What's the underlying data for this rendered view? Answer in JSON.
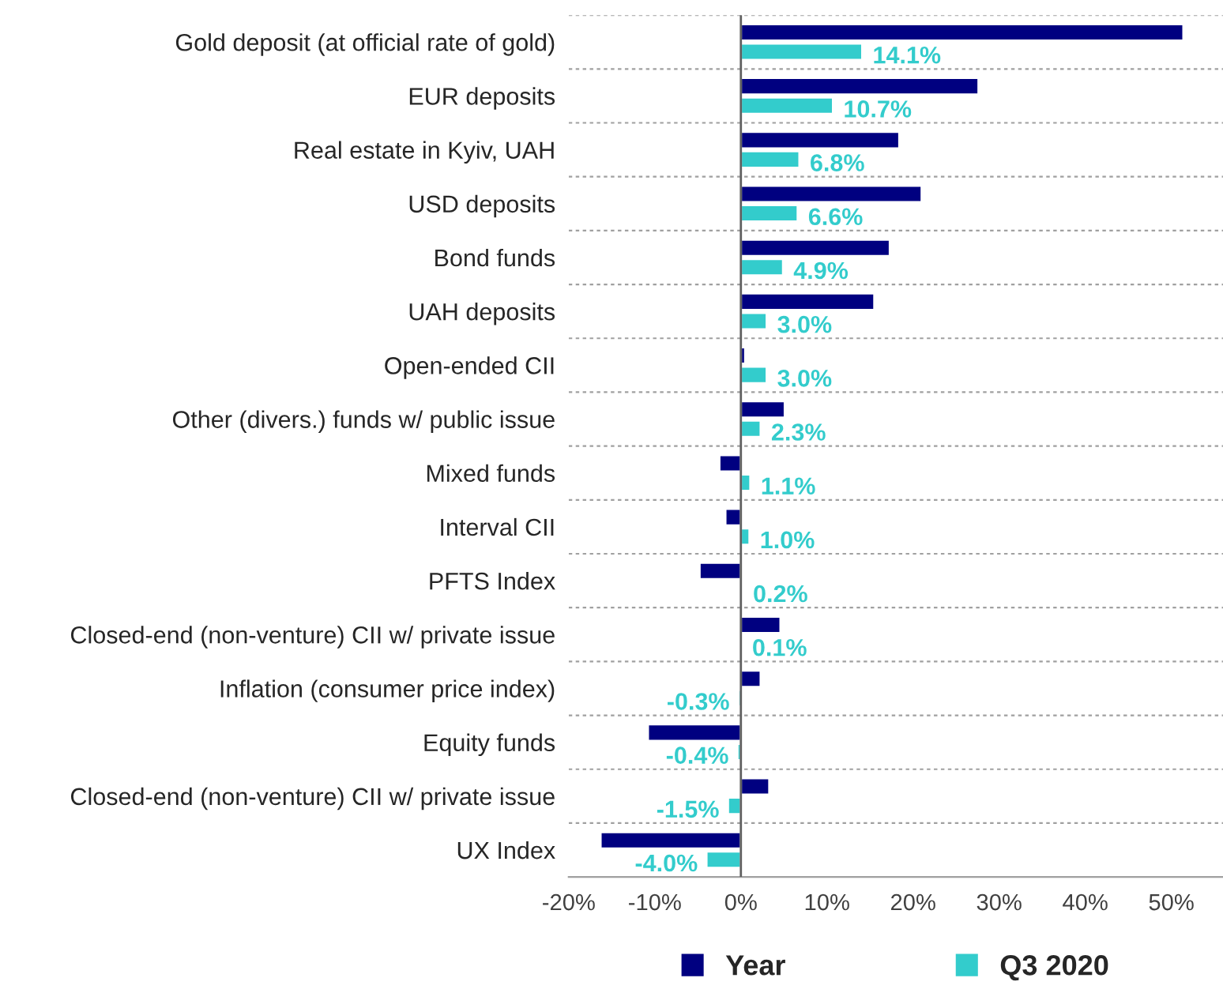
{
  "chart_data": {
    "type": "bar",
    "orientation": "horizontal",
    "categories": [
      "Gold deposit (at official rate of gold)",
      "EUR deposits",
      "Real estate in Kyiv, UAH",
      "USD deposits",
      "Bond funds",
      "UAH deposits",
      "Open-ended CII",
      "Other (divers.) funds w/ public issue",
      "Mixed funds",
      "Interval CII",
      "PFTS Index",
      "Closed-end (non-venture) CII w/ private issue",
      "Inflation (consumer price index)",
      "Equity funds",
      "Closed-end (non-venture) CII w/ private issue",
      "UX Index"
    ],
    "series": [
      {
        "name": "Year",
        "color": "#000080",
        "values": [
          51.4,
          27.6,
          18.4,
          21.0,
          17.3,
          15.5,
          0.5,
          5.1,
          -2.5,
          -1.8,
          -4.8,
          4.6,
          2.3,
          -10.8,
          3.3,
          -16.3
        ]
      },
      {
        "name": "Q3 2020",
        "color": "#33cccc",
        "values": [
          14.1,
          10.7,
          6.8,
          6.6,
          4.9,
          3.0,
          3.0,
          2.3,
          1.1,
          1.0,
          0.2,
          0.1,
          -0.3,
          -0.4,
          -1.5,
          -4.0
        ],
        "value_labels": [
          "14.1%",
          "10.7%",
          "6.8%",
          "6.6%",
          "4.9%",
          "3.0%",
          "3.0%",
          "2.3%",
          "1.1%",
          "1.0%",
          "0.2%",
          "0.1%",
          "-0.3%",
          "-0.4%",
          "-1.5%",
          "-4.0%"
        ]
      }
    ],
    "xlim": [
      -20,
      56
    ],
    "xticks": [
      {
        "value": -20,
        "label": "-20%"
      },
      {
        "value": -10,
        "label": "-10%"
      },
      {
        "value": 0,
        "label": "0%"
      },
      {
        "value": 10,
        "label": "10%"
      },
      {
        "value": 20,
        "label": "20%"
      },
      {
        "value": 30,
        "label": "30%"
      },
      {
        "value": 40,
        "label": "40%"
      },
      {
        "value": 50,
        "label": "50%"
      }
    ],
    "grid": "y",
    "legend": "bottom"
  }
}
